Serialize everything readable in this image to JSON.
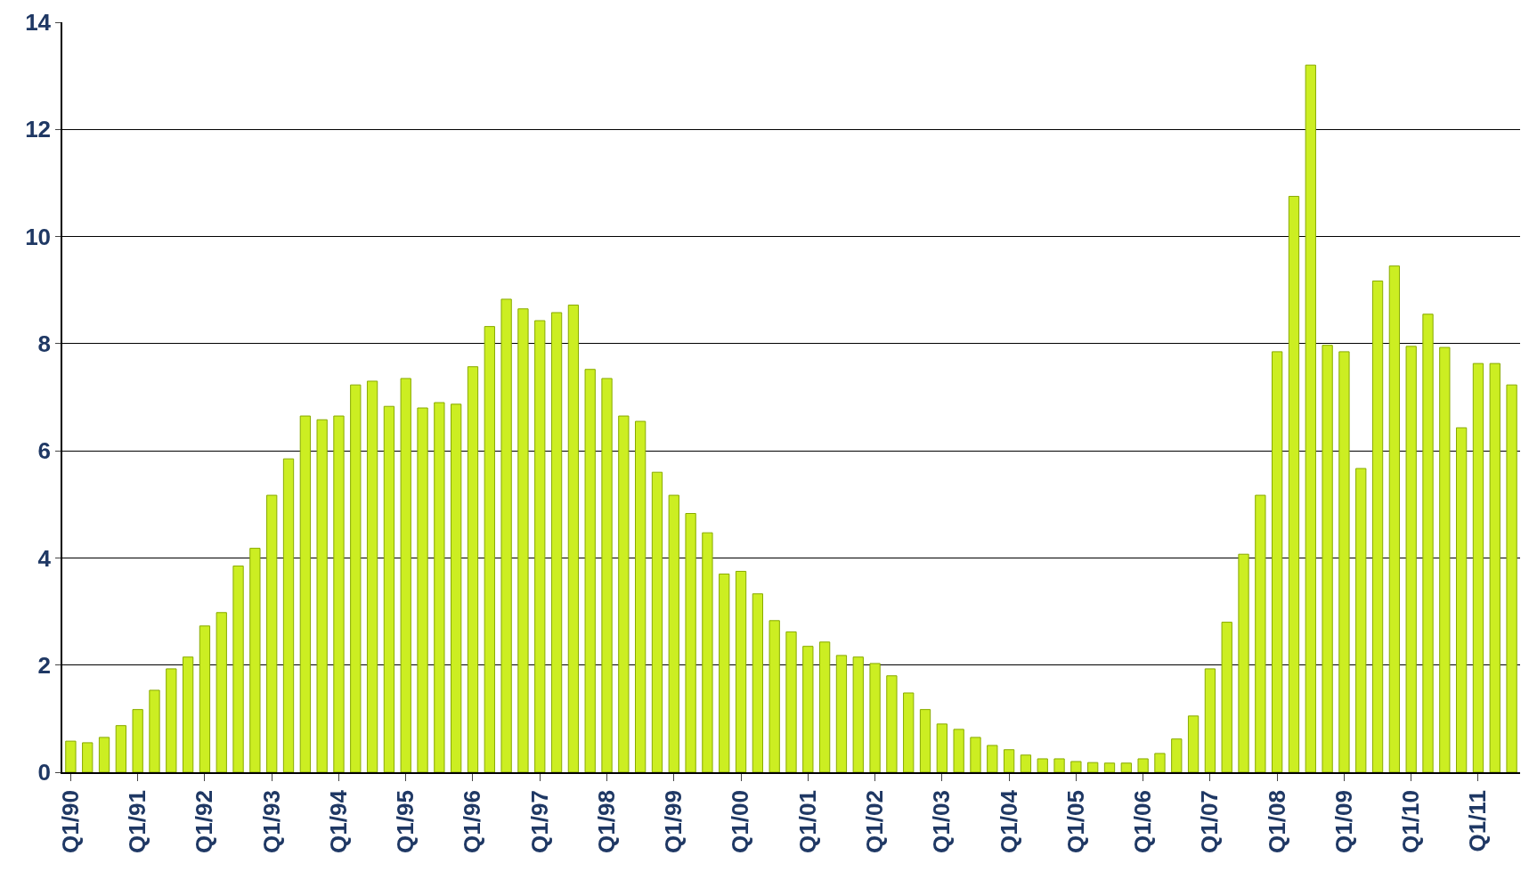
{
  "chart_data": {
    "type": "bar",
    "categories": [
      "Q1/90",
      null,
      null,
      null,
      "Q1/91",
      null,
      null,
      null,
      "Q1/92",
      null,
      null,
      null,
      "Q1/93",
      null,
      null,
      null,
      "Q1/94",
      null,
      null,
      null,
      "Q1/95",
      null,
      null,
      null,
      "Q1/96",
      null,
      null,
      null,
      "Q1/97",
      null,
      null,
      null,
      "Q1/98",
      null,
      null,
      null,
      "Q1/99",
      null,
      null,
      null,
      "Q1/00",
      null,
      null,
      null,
      "Q1/01",
      null,
      null,
      null,
      "Q1/02",
      null,
      null,
      null,
      "Q1/03",
      null,
      null,
      null,
      "Q1/04",
      null,
      null,
      null,
      "Q1/05",
      null,
      null,
      null,
      "Q1/06",
      null,
      null,
      null,
      "Q1/07",
      null,
      null,
      null,
      "Q1/08",
      null,
      null,
      null,
      "Q1/09",
      null,
      null,
      null,
      "Q1/10",
      null,
      null,
      null,
      "Q1/11",
      null,
      null
    ],
    "values": [
      0.58,
      0.55,
      0.65,
      0.87,
      1.17,
      1.53,
      1.93,
      2.15,
      2.73,
      2.98,
      3.85,
      4.18,
      5.17,
      5.85,
      6.65,
      6.58,
      6.65,
      7.23,
      7.3,
      6.83,
      7.35,
      6.8,
      6.9,
      6.87,
      7.57,
      8.32,
      8.83,
      8.65,
      8.43,
      8.58,
      8.72,
      7.52,
      7.35,
      6.65,
      6.55,
      5.6,
      5.17,
      4.83,
      4.47,
      3.7,
      3.75,
      3.33,
      2.83,
      2.62,
      2.35,
      2.43,
      2.18,
      2.15,
      2.03,
      1.8,
      1.48,
      1.17,
      0.9,
      0.8,
      0.65,
      0.5,
      0.42,
      0.32,
      0.25,
      0.25,
      0.2,
      0.18,
      0.17,
      0.17,
      0.25,
      0.35,
      0.62,
      1.05,
      1.93,
      2.8,
      4.07,
      5.17,
      7.85,
      10.75,
      13.2,
      7.97,
      7.85,
      5.67,
      9.17,
      9.45,
      7.95,
      8.55,
      7.93,
      6.43,
      7.63,
      7.63,
      7.23
    ],
    "color": "#ccee22",
    "ylim": [
      0,
      14
    ],
    "yticks": [
      0,
      2,
      4,
      6,
      8,
      10,
      12,
      14
    ],
    "grid": "y"
  }
}
